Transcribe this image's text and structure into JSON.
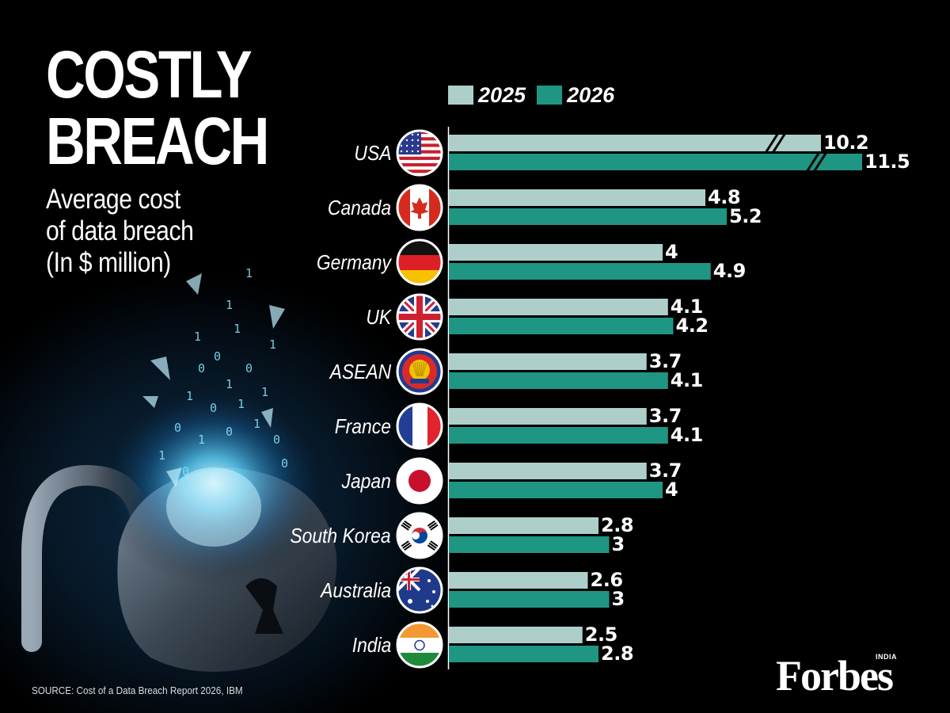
{
  "title": {
    "line1": "COSTLY",
    "line2": "BREACH"
  },
  "subtitle": [
    "Average cost",
    "of data breach",
    "(In $ million)"
  ],
  "source": "SOURCE: Cost of a Data Breach Report 2026, IBM",
  "logo": {
    "main": "Forbes",
    "sup": "INDIA"
  },
  "colors": {
    "series_2025": "#aecfc9",
    "series_2026": "#1f9583",
    "background": "#000000"
  },
  "chart_data": {
    "type": "bar",
    "orientation": "horizontal",
    "title": "COSTLY BREACH",
    "subtitle": "Average cost of data breach (In $ million)",
    "categories": [
      "USA",
      "Canada",
      "Germany",
      "UK",
      "ASEAN",
      "France",
      "Japan",
      "South Korea",
      "Australia",
      "India"
    ],
    "flag_icons": [
      "usa-flag-icon",
      "canada-flag-icon",
      "germany-flag-icon",
      "uk-flag-icon",
      "asean-flag-icon",
      "france-flag-icon",
      "japan-flag-icon",
      "south-korea-flag-icon",
      "australia-flag-icon",
      "india-flag-icon"
    ],
    "series": [
      {
        "name": "2025",
        "values": [
          10.2,
          4.8,
          4,
          4.1,
          3.7,
          3.7,
          3.7,
          2.8,
          2.6,
          2.5
        ],
        "labels": [
          "10.2",
          "4.8",
          "4",
          "4.1",
          "3.7",
          "3.7",
          "3.7",
          "2.8",
          "2.6",
          "2.5"
        ]
      },
      {
        "name": "2026",
        "values": [
          11.5,
          5.2,
          4.9,
          4.2,
          4.1,
          4.1,
          4,
          3,
          3,
          2.8
        ],
        "labels": [
          "11.5",
          "5.2",
          "4.9",
          "4.2",
          "4.1",
          "4.1",
          "4",
          "3",
          "3",
          "2.8"
        ]
      }
    ],
    "axis_break": "USA",
    "grid": false,
    "legend": "top"
  }
}
